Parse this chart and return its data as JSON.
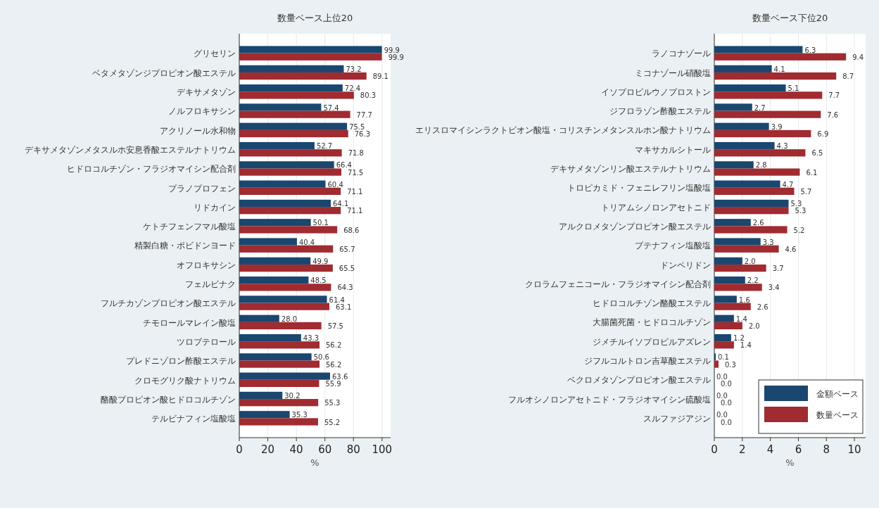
{
  "chart_data": [
    {
      "type": "bar",
      "orientation": "horizontal",
      "title": "数量ベース上位20",
      "xlabel": "%",
      "xlim": [
        0,
        106
      ],
      "xticks": [
        0,
        20,
        40,
        60,
        80,
        100
      ],
      "grid": "x",
      "legend": false,
      "categories": [
        "グリセリン",
        "ベタメタゾンジプロピオン酸エステル",
        "デキサメタゾン",
        "ノルフロキサシン",
        "アクリノール水和物",
        "デキサメタゾンメタスルホ安息香酸エステルナトリウム",
        "ヒドロコルチゾン・フラジオマイシン配合剤",
        "プラノプロフェン",
        "リドカイン",
        "ケトチフェンフマル酸塩",
        "精製白糖・ポビドンヨード",
        "オフロキサシン",
        "フェルビナク",
        "フルチカゾンプロピオン酸エステル",
        "チモロールマレイン酸塩",
        "ツロブテロール",
        "プレドニゾロン酢酸エステル",
        "クロモグリク酸ナトリウム",
        "酪酸プロピオン酸ヒドロコルチゾン",
        "テルビナフィン塩酸塩"
      ],
      "series": [
        {
          "color": "#1a476f",
          "values": [
            99.9,
            73.2,
            72.4,
            57.4,
            75.5,
            52.7,
            66.4,
            60.4,
            64.1,
            50.1,
            40.4,
            49.9,
            48.5,
            61.4,
            28.0,
            43.3,
            50.6,
            63.6,
            30.2,
            35.3
          ],
          "value_labels": [
            "99.9",
            "73.2",
            "72.4",
            "57.4",
            "75.5",
            "52.7",
            "66.4",
            "60.4",
            "64.1",
            "50.1",
            "40.4",
            "49.9",
            "48.5",
            "61.4",
            "28.0",
            "43.3",
            "50.6",
            "63.6",
            "30.2",
            "35.3"
          ]
        },
        {
          "color": "#a02b30",
          "values": [
            99.9,
            89.1,
            80.3,
            77.7,
            76.3,
            71.8,
            71.5,
            71.1,
            71.1,
            68.6,
            65.7,
            65.5,
            64.3,
            63.1,
            57.5,
            56.2,
            56.2,
            55.9,
            55.3,
            55.2
          ],
          "value_labels": [
            "99.9",
            "89.1",
            "80.3",
            "77.7",
            "76.3",
            "71.8",
            "71.5",
            "71.1",
            "71.1",
            "68.6",
            "65.7",
            "65.5",
            "64.3",
            "63.1",
            "57.5",
            "56.2",
            "56.2",
            "55.9",
            "55.3",
            "55.2"
          ]
        }
      ]
    },
    {
      "type": "bar",
      "orientation": "horizontal",
      "title": "数量ベース下位20",
      "xlabel": "%",
      "xlim": [
        0,
        10.8
      ],
      "xticks": [
        0,
        2,
        4,
        6,
        8,
        10
      ],
      "grid": "x",
      "legend": "bottom right",
      "categories": [
        "ラノコナゾール",
        "ミコナゾール硝酸塩",
        "イソプロピルウノプロストン",
        "ジフロラゾン酢酸エステル",
        "エリスロマイシンラクトビオン酸塩・コリスチンメタンスルホン酸ナトリウム",
        "マキサカルシトール",
        "デキサメタゾンリン酸エステルナトリウム",
        "トロピカミド・フェニレフリン塩酸塩",
        "トリアムシノロンアセトニド",
        "アルクロメタゾンプロピオン酸エステル",
        "ブテナフィン塩酸塩",
        "ドンペリドン",
        "クロラムフェニコール・フラジオマイシン配合剤",
        "ヒドロコルチゾン酪酸エステル",
        "大腸菌死菌・ヒドロコルチゾン",
        "ジメチルイソプロピルアズレン",
        "ジフルコルトロン吉草酸エステル",
        "ベクロメタゾンプロピオン酸エステル",
        "フルオシノロンアセトニド・フラジオマイシン硫酸塩",
        "スルファジアジン"
      ],
      "series": [
        {
          "name": "金額ベース",
          "color": "#1a476f",
          "values": [
            6.3,
            4.1,
            5.1,
            2.7,
            3.9,
            4.3,
            2.8,
            4.7,
            5.3,
            2.6,
            3.3,
            2.0,
            2.2,
            1.6,
            1.4,
            1.2,
            0.1,
            0.0,
            0.0,
            0.0
          ],
          "value_labels": [
            "6.3",
            "4.1",
            "5.1",
            "2.7",
            "3.9",
            "4.3",
            "2.8",
            "4.7",
            "5.3",
            "2.6",
            "3.3",
            "2.0",
            "2.2",
            "1.6",
            "1.4",
            "1.2",
            "0.1",
            "0.0",
            "0.0",
            "0.0"
          ]
        },
        {
          "name": "数量ベース",
          "color": "#a02b30",
          "values": [
            9.4,
            8.7,
            7.7,
            7.6,
            6.9,
            6.5,
            6.1,
            5.7,
            5.3,
            5.2,
            4.6,
            3.7,
            3.4,
            2.6,
            2.0,
            1.4,
            0.3,
            0.0,
            0.0,
            0.0
          ],
          "value_labels": [
            "9.4",
            "8.7",
            "7.7",
            "7.6",
            "6.9",
            "6.5",
            "6.1",
            "5.7",
            "5.3",
            "5.2",
            "4.6",
            "3.7",
            "3.4",
            "2.6",
            "2.0",
            "1.4",
            "0.3",
            "0.0",
            "0.0",
            "0.0"
          ]
        }
      ]
    }
  ]
}
